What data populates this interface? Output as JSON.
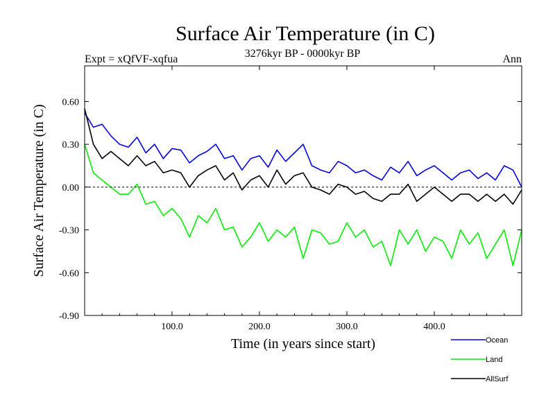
{
  "chart_data": {
    "type": "line",
    "title": "Surface Air Temperature (in C)",
    "subtitle": "3276kyr BP - 0000kyr BP",
    "left_label": "Expt = xQfVF-xqfua",
    "right_label": "Ann",
    "xlabel": "Time (in years since start)",
    "ylabel": "Surface Air Temperature (in C)",
    "xlim": [
      0,
      500
    ],
    "ylim": [
      -0.9,
      0.85
    ],
    "xticks": [
      100,
      200,
      300,
      400
    ],
    "xtick_labels": [
      "100.0",
      "200.0",
      "300.0",
      "400.0"
    ],
    "yticks": [
      -0.9,
      -0.6,
      -0.3,
      0.0,
      0.3,
      0.6
    ],
    "ytick_labels": [
      "-0.90",
      "-0.60",
      "-0.30",
      "0.00",
      "0.30",
      "0.60"
    ],
    "zero_line": true,
    "legend_position": "bottom-right",
    "series": [
      {
        "name": "Ocean",
        "color": "#0000dd",
        "x": [
          0,
          10,
          20,
          30,
          40,
          50,
          60,
          70,
          80,
          90,
          100,
          110,
          120,
          130,
          140,
          150,
          160,
          170,
          180,
          190,
          200,
          210,
          220,
          230,
          240,
          250,
          260,
          270,
          280,
          290,
          300,
          310,
          320,
          330,
          340,
          350,
          360,
          370,
          380,
          390,
          400,
          410,
          420,
          430,
          440,
          450,
          460,
          470,
          480,
          490,
          500
        ],
        "values": [
          0.52,
          0.42,
          0.44,
          0.36,
          0.3,
          0.28,
          0.35,
          0.24,
          0.3,
          0.2,
          0.27,
          0.26,
          0.17,
          0.22,
          0.25,
          0.3,
          0.2,
          0.22,
          0.12,
          0.2,
          0.22,
          0.14,
          0.26,
          0.18,
          0.24,
          0.3,
          0.15,
          0.12,
          0.1,
          0.18,
          0.15,
          0.1,
          0.12,
          0.08,
          0.05,
          0.14,
          0.1,
          0.18,
          0.08,
          0.12,
          0.15,
          0.1,
          0.05,
          0.1,
          0.12,
          0.06,
          0.1,
          0.05,
          0.15,
          0.12,
          0.0
        ]
      },
      {
        "name": "Land",
        "color": "#00ee00",
        "x": [
          0,
          10,
          20,
          30,
          40,
          50,
          60,
          70,
          80,
          90,
          100,
          110,
          120,
          130,
          140,
          150,
          160,
          170,
          180,
          190,
          200,
          210,
          220,
          230,
          240,
          250,
          260,
          270,
          280,
          290,
          300,
          310,
          320,
          330,
          340,
          350,
          360,
          370,
          380,
          390,
          400,
          410,
          420,
          430,
          440,
          450,
          460,
          470,
          480,
          490,
          500
        ],
        "values": [
          0.3,
          0.1,
          0.05,
          0.0,
          -0.05,
          -0.05,
          0.02,
          -0.12,
          -0.1,
          -0.2,
          -0.15,
          -0.22,
          -0.35,
          -0.2,
          -0.25,
          -0.15,
          -0.3,
          -0.28,
          -0.42,
          -0.35,
          -0.25,
          -0.38,
          -0.3,
          -0.35,
          -0.28,
          -0.5,
          -0.3,
          -0.32,
          -0.4,
          -0.38,
          -0.25,
          -0.35,
          -0.3,
          -0.42,
          -0.38,
          -0.55,
          -0.3,
          -0.4,
          -0.3,
          -0.45,
          -0.35,
          -0.38,
          -0.5,
          -0.3,
          -0.4,
          -0.32,
          -0.5,
          -0.4,
          -0.3,
          -0.55,
          -0.3
        ]
      },
      {
        "name": "AllSurf",
        "color": "#000000",
        "x": [
          0,
          10,
          20,
          30,
          40,
          50,
          60,
          70,
          80,
          90,
          100,
          110,
          120,
          130,
          140,
          150,
          160,
          170,
          180,
          190,
          200,
          210,
          220,
          230,
          240,
          250,
          260,
          270,
          280,
          290,
          300,
          310,
          320,
          330,
          340,
          350,
          360,
          370,
          380,
          390,
          400,
          410,
          420,
          430,
          440,
          450,
          460,
          470,
          480,
          490,
          500
        ],
        "values": [
          0.55,
          0.3,
          0.2,
          0.25,
          0.2,
          0.15,
          0.22,
          0.15,
          0.18,
          0.1,
          0.12,
          0.1,
          0.0,
          0.08,
          0.12,
          0.15,
          0.05,
          0.1,
          -0.02,
          0.05,
          0.08,
          0.0,
          0.12,
          0.02,
          0.08,
          0.1,
          0.0,
          -0.02,
          -0.05,
          0.02,
          0.0,
          -0.05,
          -0.03,
          -0.08,
          -0.1,
          -0.05,
          -0.05,
          0.02,
          -0.1,
          -0.05,
          0.0,
          -0.05,
          -0.1,
          -0.05,
          -0.05,
          -0.1,
          -0.05,
          -0.1,
          -0.05,
          -0.12,
          -0.02
        ]
      }
    ]
  }
}
